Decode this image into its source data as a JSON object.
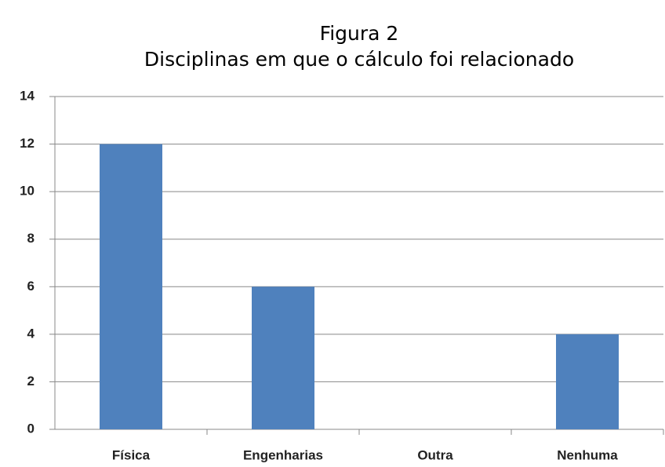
{
  "chart_data": {
    "type": "bar",
    "title": "Figura 2",
    "subtitle": "Disciplinas em que o cálculo foi relacionado",
    "categories": [
      "Física",
      "Engenharias",
      "Outra",
      "Nenhuma"
    ],
    "values": [
      12,
      6,
      0,
      4
    ],
    "color": "#4f81bd",
    "ylim": [
      0,
      14
    ],
    "yticks": [
      0,
      2,
      4,
      6,
      8,
      10,
      12,
      14
    ],
    "grid": true
  }
}
